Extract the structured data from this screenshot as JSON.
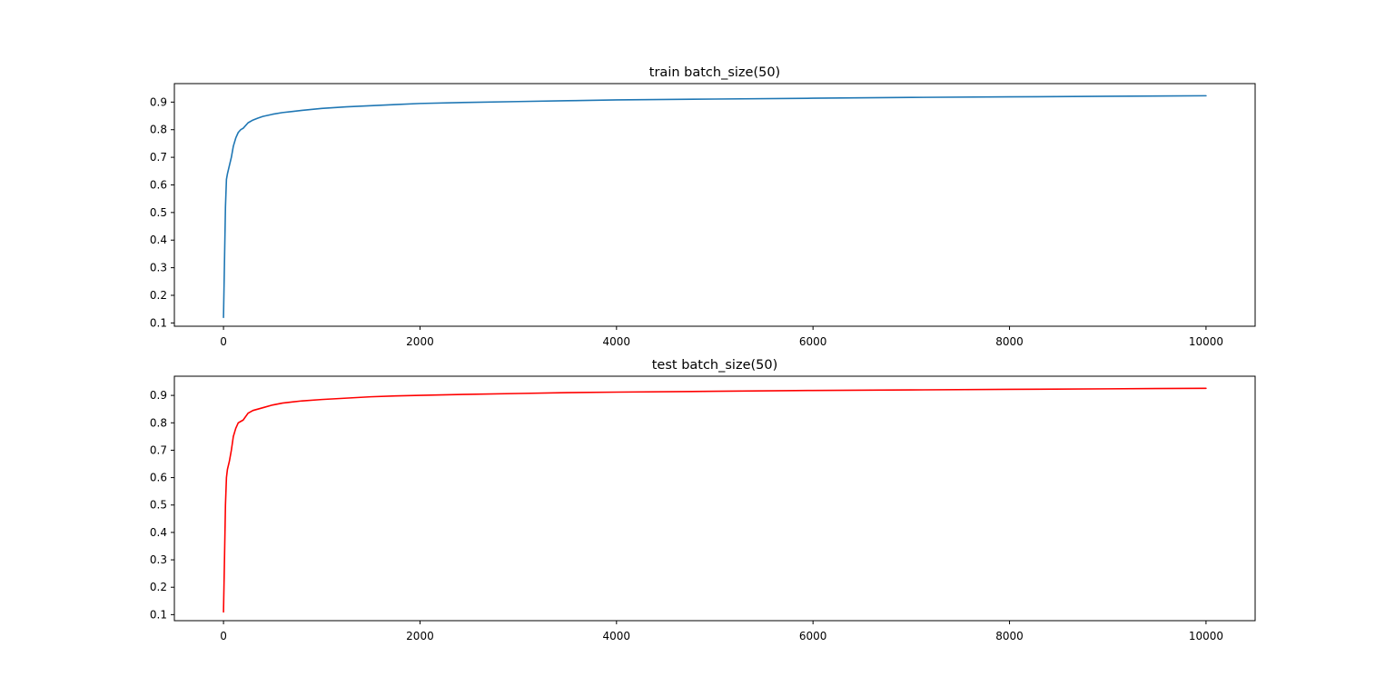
{
  "chart_data": [
    {
      "type": "line",
      "title": "train batch_size(50)",
      "xlabel": "",
      "ylabel": "",
      "xlim": [
        -500,
        10500
      ],
      "ylim": [
        0.088,
        0.967
      ],
      "xticks": [
        0,
        2000,
        4000,
        6000,
        8000,
        10000
      ],
      "yticks": [
        0.1,
        0.2,
        0.3,
        0.4,
        0.5,
        0.6,
        0.7,
        0.8,
        0.9
      ],
      "xtick_labels": [
        "0",
        "2000",
        "4000",
        "6000",
        "8000",
        "10000"
      ],
      "ytick_labels": [
        "0.1",
        "0.2",
        "0.3",
        "0.4",
        "0.5",
        "0.6",
        "0.7",
        "0.8",
        "0.9"
      ],
      "grid": false,
      "series": [
        {
          "color": "#1f77b4",
          "x": [
            0,
            10,
            20,
            30,
            40,
            60,
            80,
            100,
            125,
            150,
            175,
            200,
            250,
            300,
            350,
            400,
            500,
            600,
            700,
            800,
            1000,
            1250,
            1500,
            1750,
            2000,
            2500,
            3000,
            3500,
            4000,
            5000,
            6000,
            7000,
            8000,
            9000,
            10000
          ],
          "y": [
            0.12,
            0.32,
            0.52,
            0.62,
            0.64,
            0.67,
            0.7,
            0.74,
            0.77,
            0.79,
            0.8,
            0.805,
            0.825,
            0.835,
            0.842,
            0.848,
            0.856,
            0.862,
            0.866,
            0.87,
            0.877,
            0.883,
            0.887,
            0.891,
            0.895,
            0.899,
            0.902,
            0.905,
            0.908,
            0.911,
            0.914,
            0.917,
            0.919,
            0.921,
            0.923
          ]
        }
      ]
    },
    {
      "type": "line",
      "title": "test batch_size(50)",
      "xlabel": "",
      "ylabel": "",
      "xlim": [
        -500,
        10500
      ],
      "ylim": [
        0.078,
        0.97
      ],
      "xticks": [
        0,
        2000,
        4000,
        6000,
        8000,
        10000
      ],
      "yticks": [
        0.1,
        0.2,
        0.3,
        0.4,
        0.5,
        0.6,
        0.7,
        0.8,
        0.9
      ],
      "xtick_labels": [
        "0",
        "2000",
        "4000",
        "6000",
        "8000",
        "10000"
      ],
      "ytick_labels": [
        "0.1",
        "0.2",
        "0.3",
        "0.4",
        "0.5",
        "0.6",
        "0.7",
        "0.8",
        "0.9"
      ],
      "grid": false,
      "series": [
        {
          "color": "#ff0000",
          "x": [
            0,
            10,
            20,
            30,
            40,
            60,
            80,
            100,
            125,
            150,
            175,
            200,
            250,
            300,
            350,
            400,
            500,
            600,
            700,
            800,
            1000,
            1250,
            1500,
            1750,
            2000,
            2500,
            3000,
            3500,
            4000,
            5000,
            6000,
            7000,
            8000,
            9000,
            10000
          ],
          "y": [
            0.11,
            0.3,
            0.5,
            0.6,
            0.63,
            0.66,
            0.7,
            0.75,
            0.78,
            0.8,
            0.805,
            0.81,
            0.835,
            0.845,
            0.85,
            0.855,
            0.865,
            0.872,
            0.876,
            0.88,
            0.885,
            0.89,
            0.895,
            0.898,
            0.9,
            0.904,
            0.907,
            0.91,
            0.912,
            0.915,
            0.918,
            0.92,
            0.922,
            0.924,
            0.926
          ]
        }
      ]
    }
  ]
}
